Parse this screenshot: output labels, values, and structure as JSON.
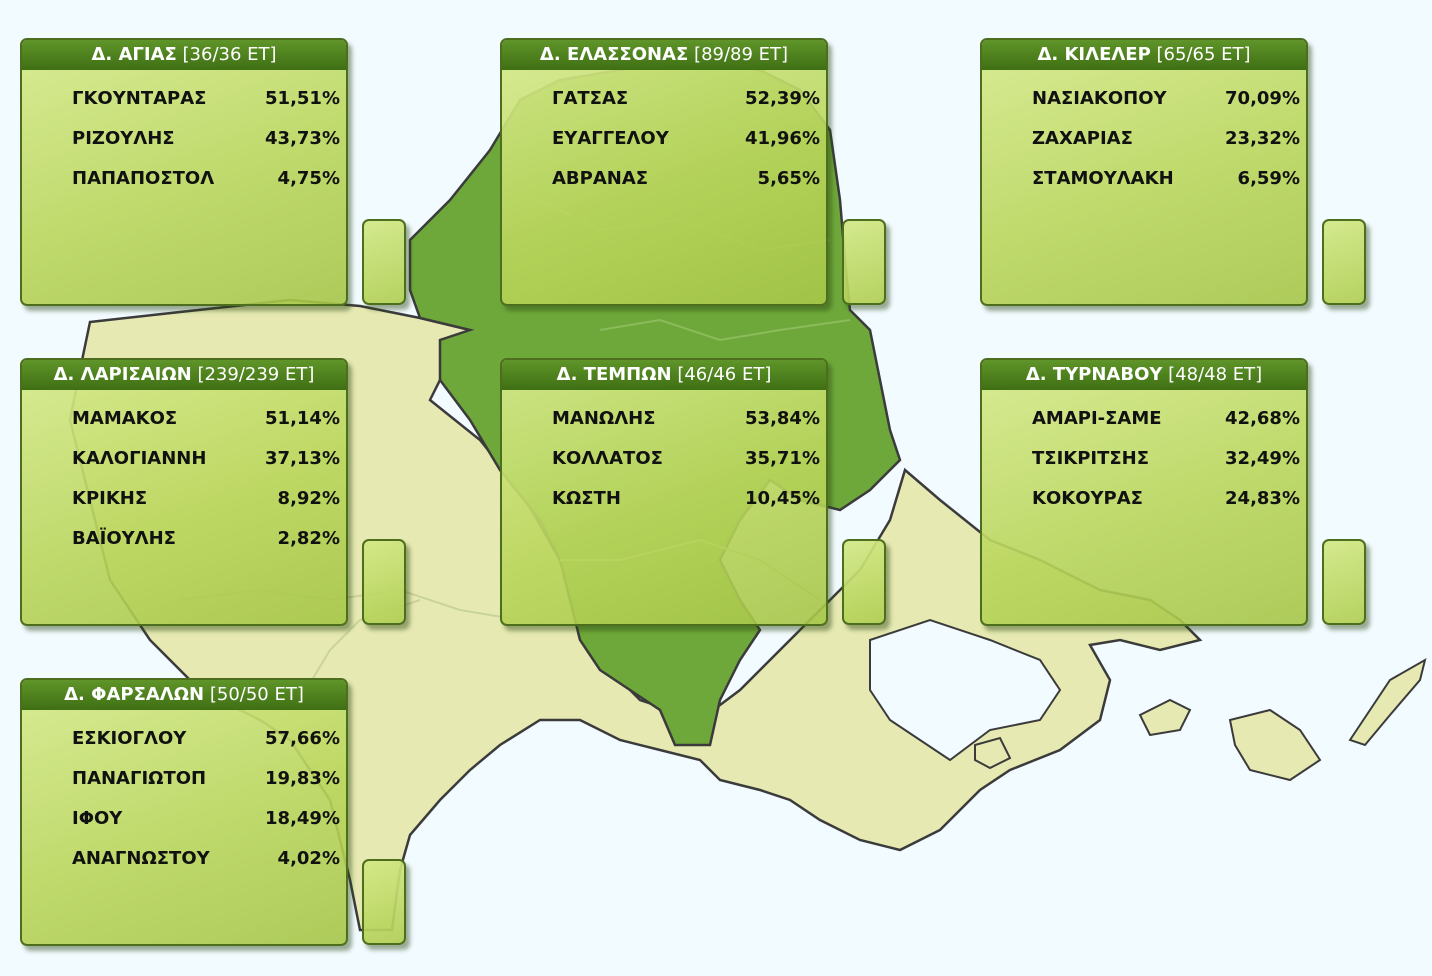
{
  "colors": {
    "background": "#f2fbff",
    "region_light": "#e6eab2",
    "region_dark": "#6ea83a",
    "header": "#4a7c1c",
    "border": "#333333"
  },
  "municipalities": [
    {
      "name": "Δ. ΑΓΙΑΣ",
      "count": "[36/36 ΕΤ]",
      "candidates": [
        {
          "name": "ΓΚΟΥΝΤΑΡΑΣ",
          "pct": "51,51%"
        },
        {
          "name": "ΡΙΖΟΥΛΗΣ",
          "pct": "43,73%"
        },
        {
          "name": "ΠΑΠΑΠΟΣΤΟΛ",
          "pct": "4,75%"
        }
      ]
    },
    {
      "name": "Δ. ΕΛΑΣΣΟΝΑΣ",
      "count": "[89/89 ΕΤ]",
      "candidates": [
        {
          "name": "ΓΑΤΣΑΣ",
          "pct": "52,39%"
        },
        {
          "name": "ΕΥΑΓΓΕΛΟΥ",
          "pct": "41,96%"
        },
        {
          "name": "ΑΒΡΑΝΑΣ",
          "pct": "5,65%"
        }
      ]
    },
    {
      "name": "Δ. ΚΙΛΕΛΕΡ",
      "count": "[65/65 ΕΤ]",
      "candidates": [
        {
          "name": "ΝΑΣΙΑΚΟΠΟΥ",
          "pct": "70,09%"
        },
        {
          "name": "ΖΑΧΑΡΙΑΣ",
          "pct": "23,32%"
        },
        {
          "name": "ΣΤΑΜΟΥΛΑΚΗ",
          "pct": "6,59%"
        }
      ]
    },
    {
      "name": "Δ. ΛΑΡΙΣΑΙΩΝ",
      "count": "[239/239 ΕΤ]",
      "candidates": [
        {
          "name": "ΜΑΜΑΚΟΣ",
          "pct": "51,14%"
        },
        {
          "name": "ΚΑΛΟΓΙΑΝΝΗ",
          "pct": "37,13%"
        },
        {
          "name": "ΚΡΙΚΗΣ",
          "pct": "8,92%"
        },
        {
          "name": "ΒΑΪΟΥΛΗΣ",
          "pct": "2,82%"
        }
      ]
    },
    {
      "name": "Δ. ΤΕΜΠΩΝ",
      "count": "[46/46 ΕΤ]",
      "candidates": [
        {
          "name": "ΜΑΝΩΛΗΣ",
          "pct": "53,84%"
        },
        {
          "name": "ΚΟΛΛΑΤΟΣ",
          "pct": "35,71%"
        },
        {
          "name": "ΚΩΣΤΗ",
          "pct": "10,45%"
        }
      ]
    },
    {
      "name": "Δ. ΤΥΡΝΑΒΟΥ",
      "count": "[48/48 ΕΤ]",
      "candidates": [
        {
          "name": "ΑΜΑΡΙ-ΣΑΜΕ",
          "pct": "42,68%"
        },
        {
          "name": "ΤΣΙΚΡΙΤΣΗΣ",
          "pct": "32,49%"
        },
        {
          "name": "ΚΟΚΟΥΡΑΣ",
          "pct": "24,83%"
        }
      ]
    },
    {
      "name": "Δ. ΦΑΡΣΑΛΩΝ",
      "count": "[50/50 ΕΤ]",
      "candidates": [
        {
          "name": "ΕΣΚΙΟΓΛΟΥ",
          "pct": "57,66%"
        },
        {
          "name": "ΠΑΝΑΓΙΩΤΟΠ",
          "pct": "19,83%"
        },
        {
          "name": "ΙΦΟΥ",
          "pct": "18,49%"
        },
        {
          "name": "ΑΝΑΓΝΩΣΤΟΥ",
          "pct": "4,02%"
        }
      ]
    }
  ]
}
